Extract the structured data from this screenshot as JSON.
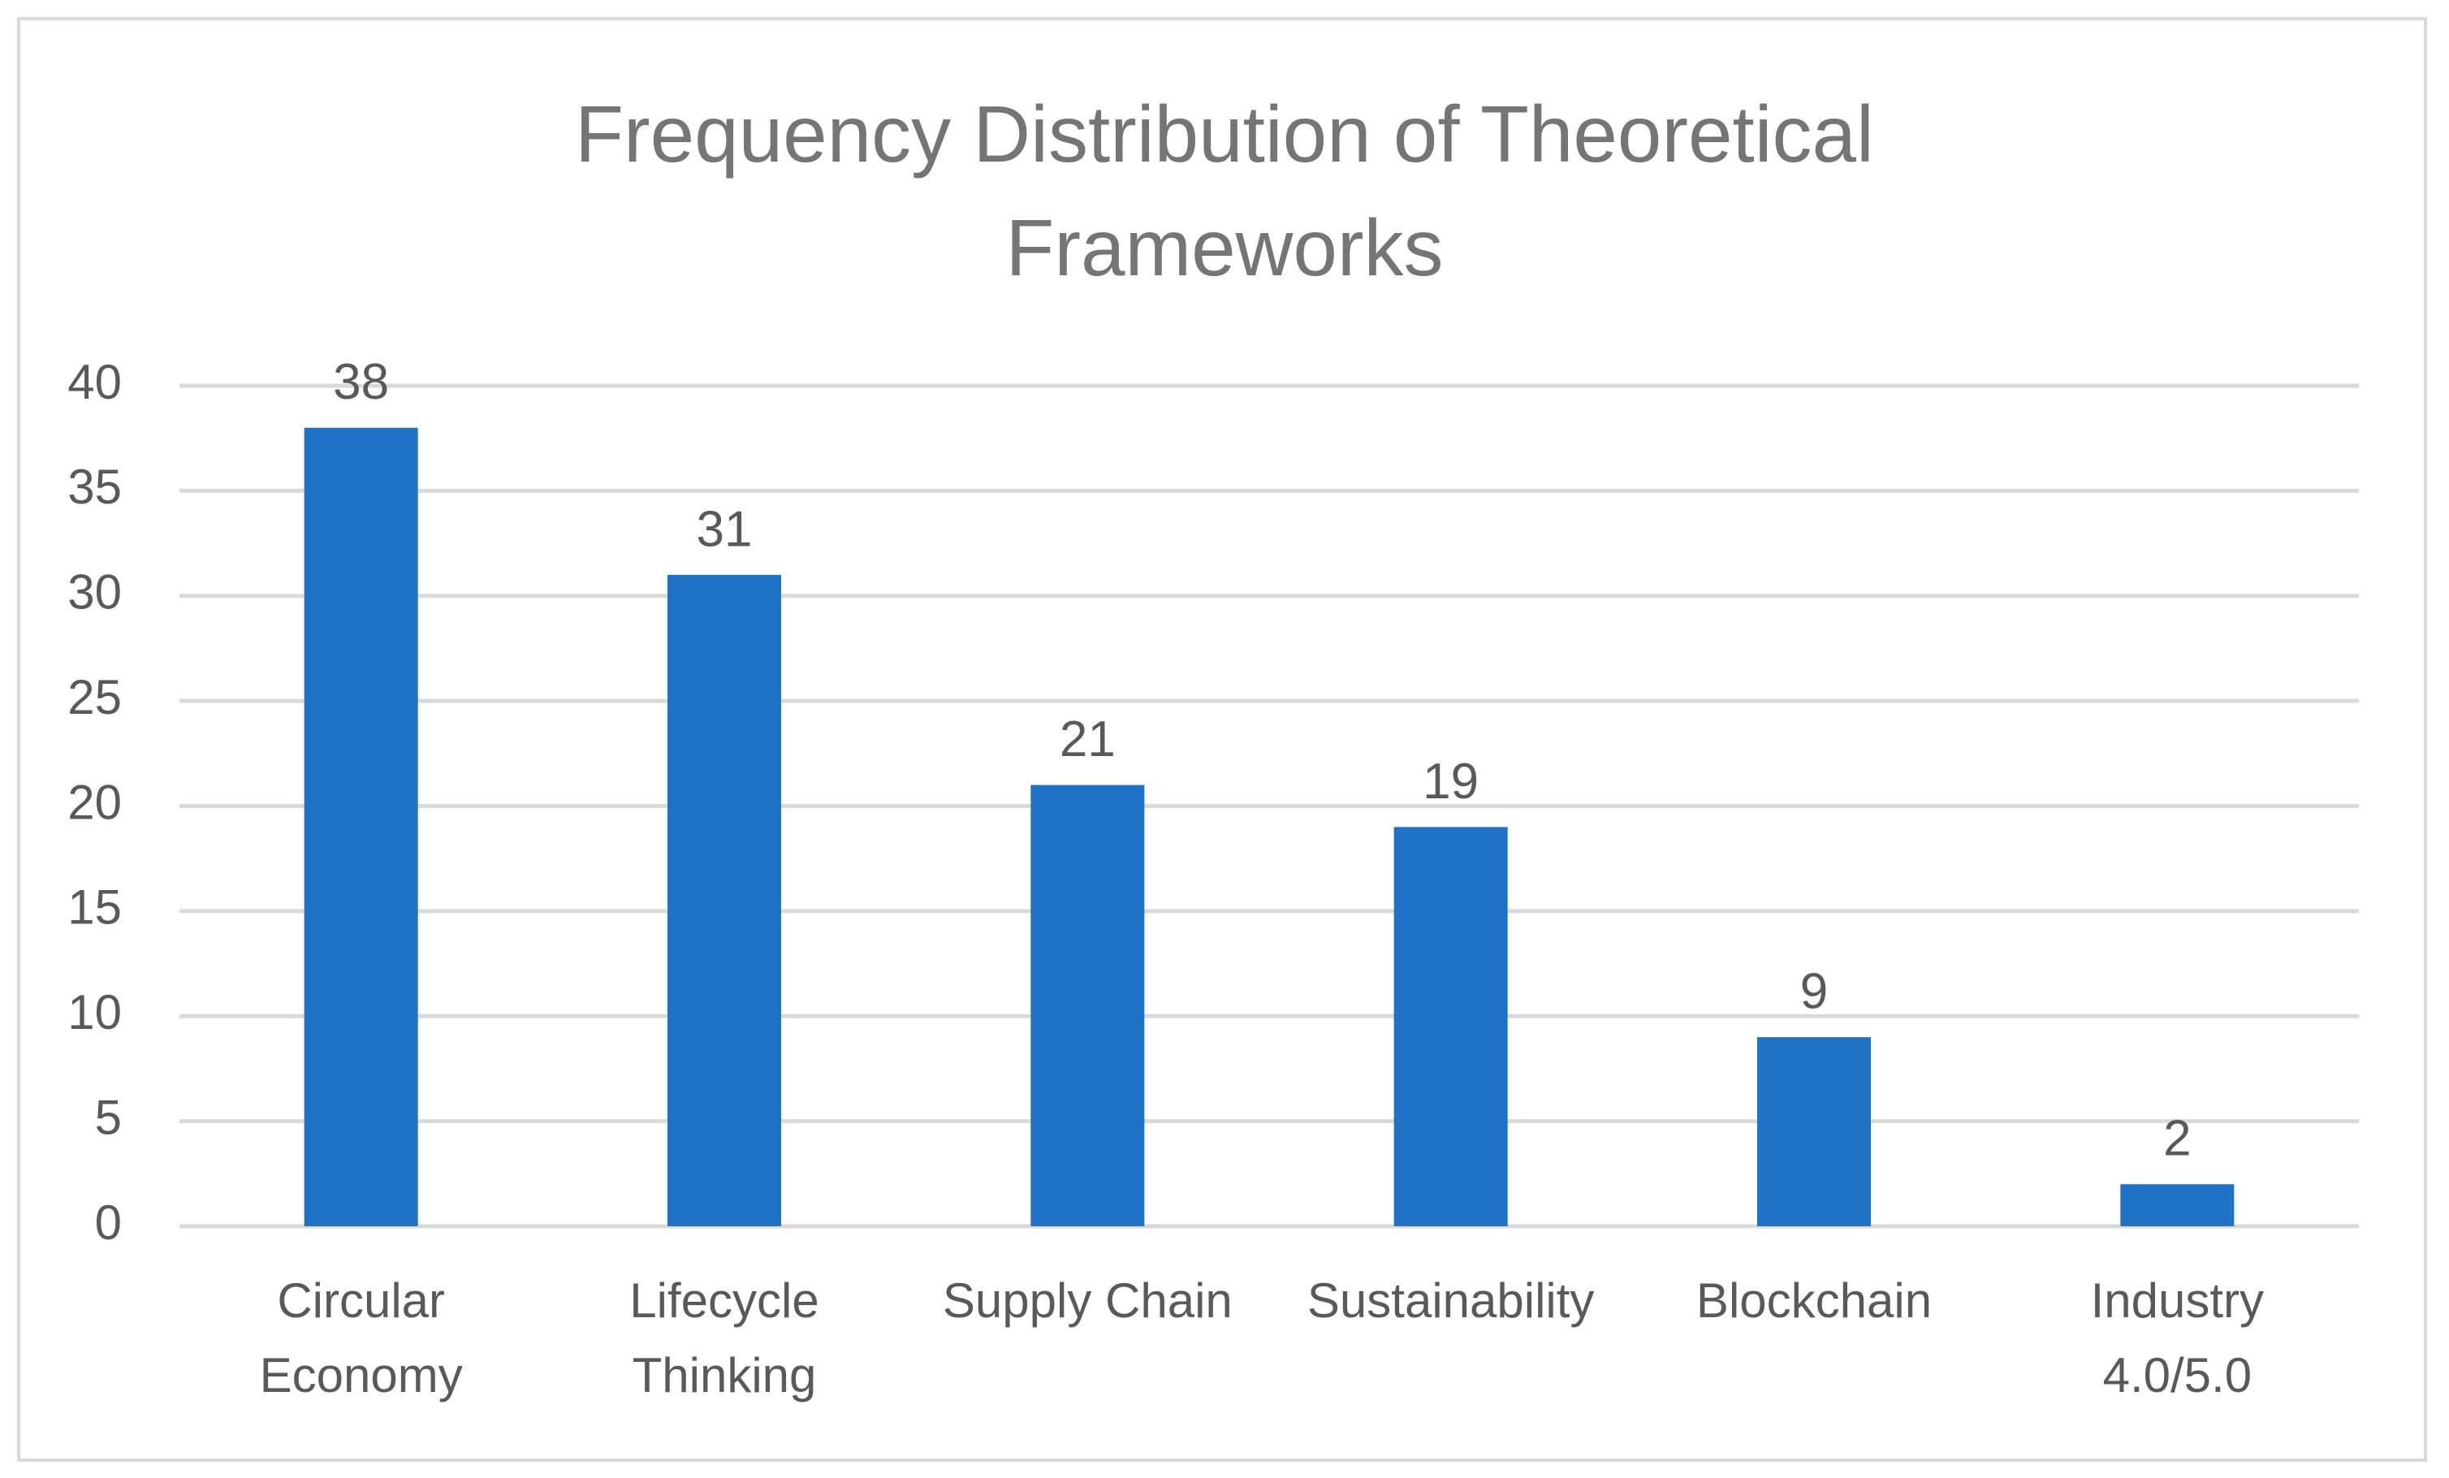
{
  "chart_data": {
    "type": "bar",
    "title": "Frequency Distribution of Theoretical Frameworks",
    "categories": [
      [
        "Circular",
        "Economy"
      ],
      [
        "Lifecycle",
        "Thinking"
      ],
      [
        "Supply Chain"
      ],
      [
        "Sustainability"
      ],
      [
        "Blockchain"
      ],
      [
        "Industry",
        "4.0/5.0"
      ]
    ],
    "values": [
      38,
      31,
      21,
      19,
      9,
      2
    ],
    "color": "#1f72c6",
    "ylim": [
      0,
      40
    ],
    "yticks": [
      0,
      5,
      10,
      15,
      20,
      25,
      30,
      35,
      40
    ],
    "grid": true
  }
}
